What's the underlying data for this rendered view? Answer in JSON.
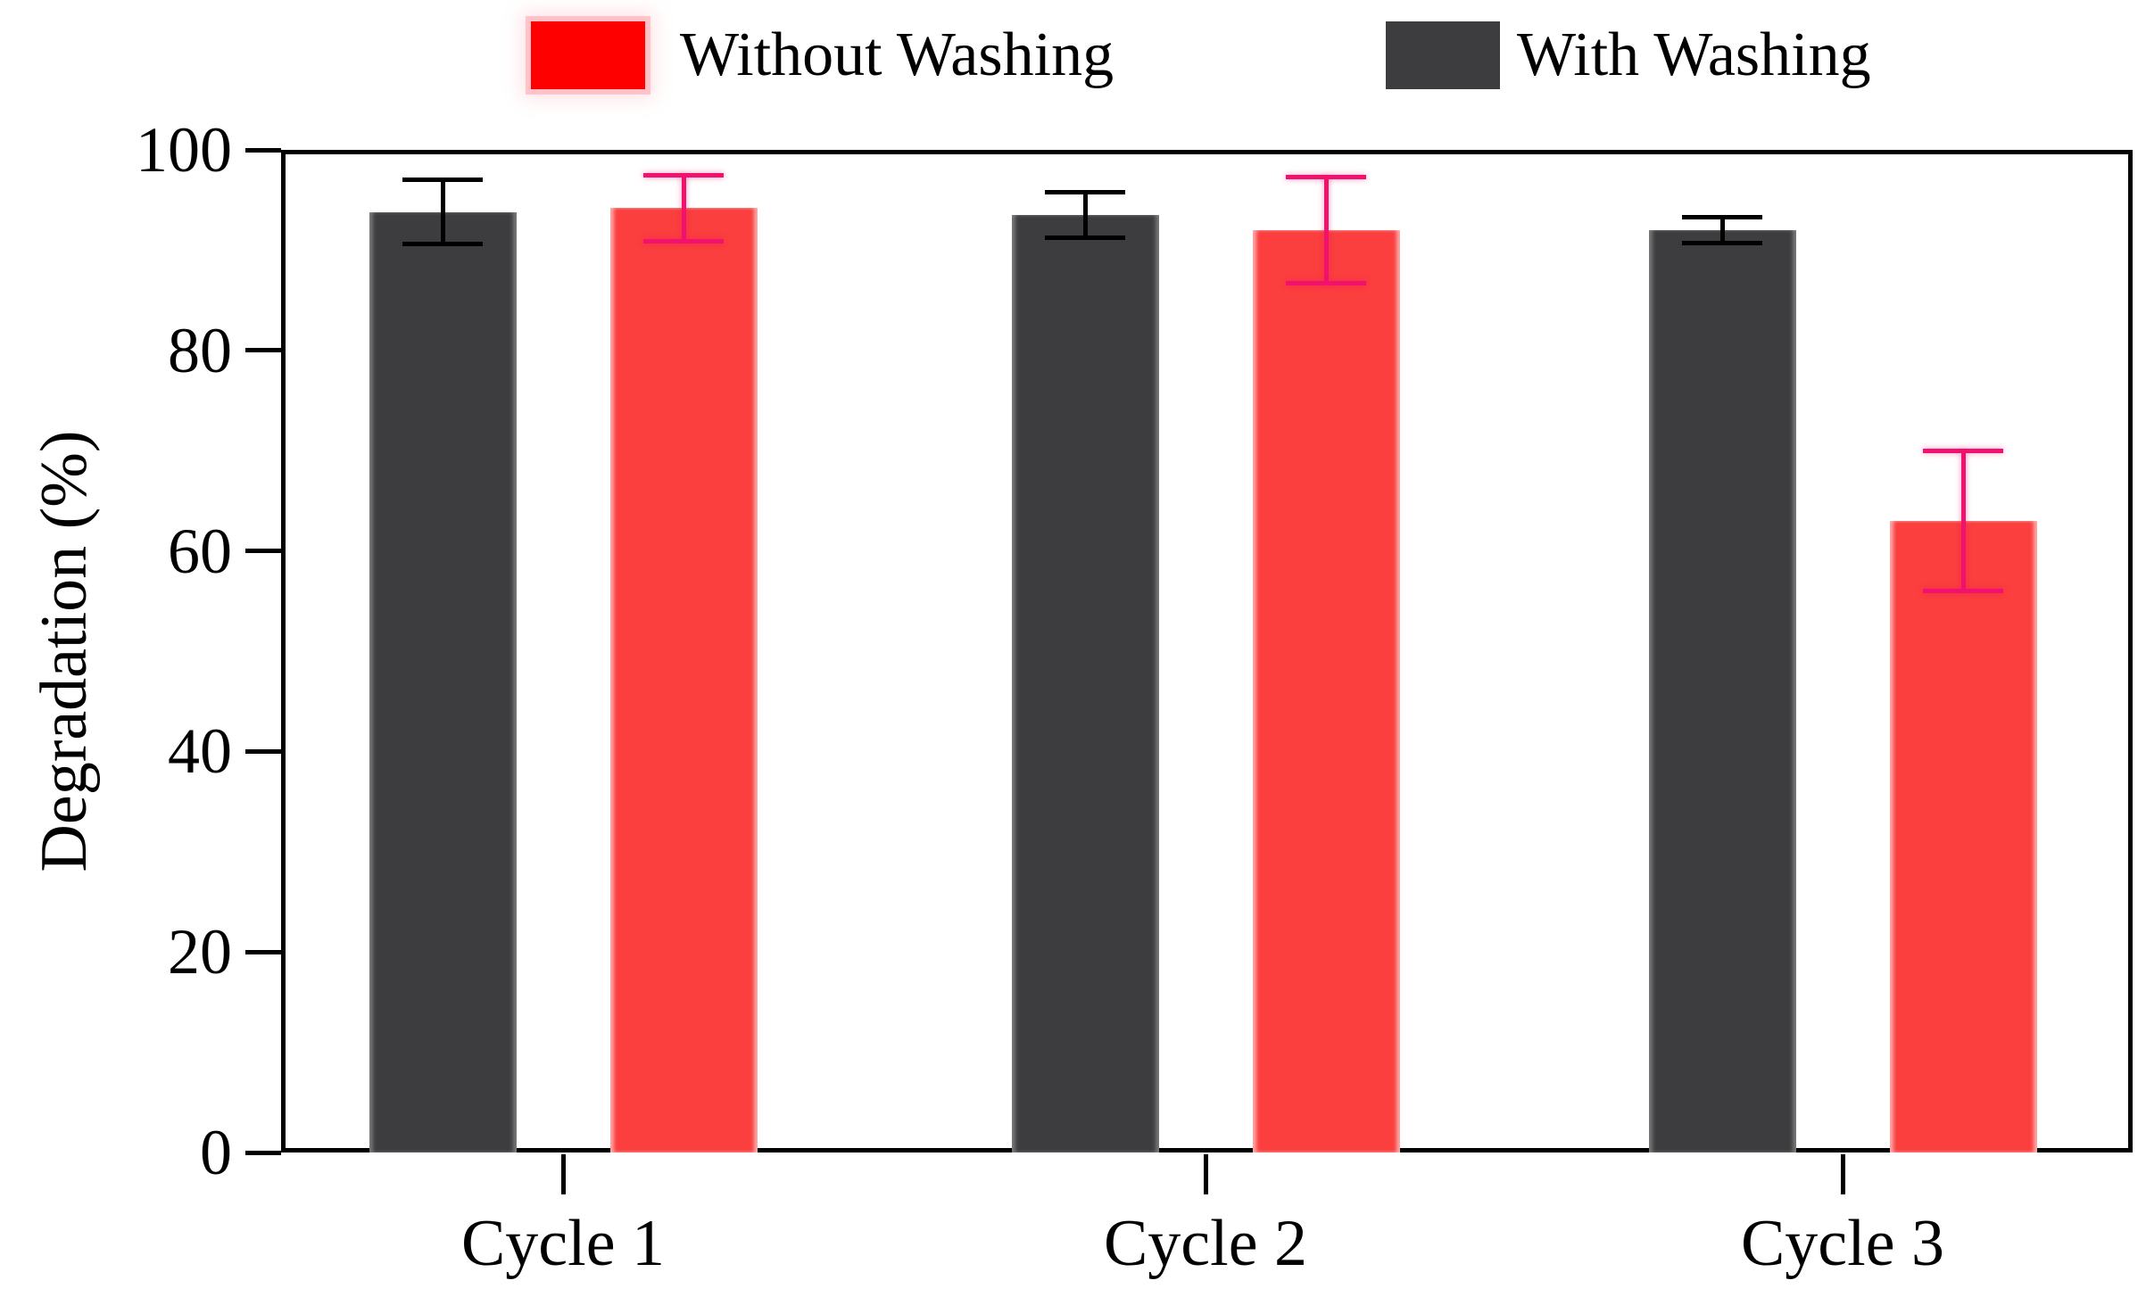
{
  "figure": {
    "background": "#ffffff"
  },
  "legend": {
    "items": [
      {
        "label": "Without Washing",
        "swatch_color": "#fe0000",
        "swatch_glow": "#ffa8b0"
      },
      {
        "label": "With Washing",
        "swatch_color": "#3d3d3f",
        "swatch_glow": ""
      }
    ]
  },
  "chart_data": {
    "type": "bar",
    "categories": [
      "Cycle 1",
      "Cycle 2",
      "Cycle 3"
    ],
    "series": [
      {
        "name": "Without Washing",
        "color": "#fb3e3e",
        "error_color": "#f1126e",
        "position_in_group": "right",
        "values": [
          94.2,
          92.0,
          63.0
        ],
        "errors": [
          3.3,
          5.3,
          7.0
        ]
      },
      {
        "name": "With Washing",
        "color": "#3d3d3f",
        "error_color": "#000000",
        "position_in_group": "left",
        "values": [
          93.8,
          93.5,
          92.0
        ],
        "errors": [
          3.2,
          2.3,
          1.3
        ]
      }
    ],
    "title": "",
    "xlabel": "",
    "ylabel": "Degradation (%)",
    "ylim": [
      0,
      100
    ],
    "yticks": [
      0,
      20,
      40,
      60,
      80,
      100
    ],
    "grid": false,
    "error_bars": true,
    "legend_position": "top"
  }
}
